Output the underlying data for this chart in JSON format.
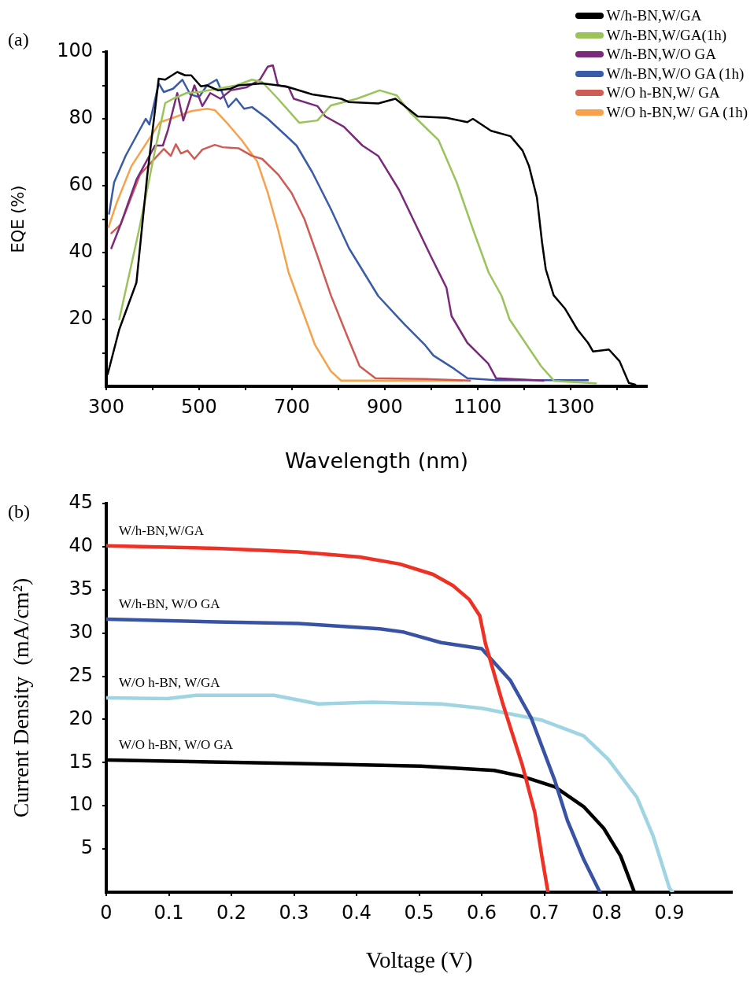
{
  "chart_data": [
    {
      "type": "line",
      "annotations": [
        "(a)"
      ],
      "xlabel": "Wavelength (nm)",
      "ylabel": "EQE (%)",
      "xlim": [
        300,
        1465
      ],
      "ylim": [
        0,
        100
      ],
      "xticks": [
        300,
        {
          "value": 400,
          "label": null
        },
        500,
        {
          "value": 600,
          "label": null
        },
        700,
        {
          "value": 800,
          "label": null
        },
        900,
        {
          "value": 1000,
          "label": null
        },
        1100,
        {
          "value": 1200,
          "label": null
        },
        1300,
        {
          "value": 1400,
          "label": null
        }
      ],
      "yticks": [
        {
          "value": 10,
          "label": null
        },
        20,
        {
          "value": 30,
          "label": null
        },
        40,
        {
          "value": 50,
          "label": null
        },
        60,
        {
          "value": 70,
          "label": null
        },
        80,
        {
          "value": 90,
          "label": null
        },
        100
      ],
      "grid": false,
      "legend": "top right",
      "marker": "none",
      "line_style": "solid",
      "series": [
        {
          "name": "W/h-BN,W/GA",
          "color": "#000000",
          "x": [
            303,
            328,
            365,
            388,
            413,
            427,
            453,
            470,
            483,
            504,
            517,
            541,
            568,
            585,
            636,
            687,
            744,
            806,
            823,
            886,
            923,
            971,
            1033,
            1078,
            1090,
            1129,
            1171,
            1197,
            1211,
            1228,
            1239,
            1247,
            1264,
            1288,
            1315,
            1338,
            1349,
            1383,
            1406,
            1426,
            1440
          ],
          "values": [
            3.6,
            17,
            31,
            62.6,
            92,
            91.7,
            94,
            93,
            93,
            89.7,
            90,
            88.5,
            89,
            90,
            90.6,
            89.7,
            87.3,
            86,
            85,
            84.6,
            86,
            80.7,
            80.3,
            79,
            80,
            76.4,
            74.8,
            70.5,
            65.8,
            56.4,
            43,
            35,
            27.2,
            23.3,
            17,
            13,
            10.4,
            11,
            7.5,
            1,
            0.5
          ]
        },
        {
          "name": "W/h-BN,W/GA(1h)",
          "color": "#9bc35a",
          "x": [
            328,
            371,
            405,
            427,
            444,
            473,
            500,
            541,
            580,
            614,
            636,
            670,
            716,
            755,
            784,
            840,
            889,
            926,
            954,
            976,
            1016,
            1055,
            1090,
            1124,
            1152,
            1169,
            1203,
            1237,
            1265,
            1355
          ],
          "values": [
            20,
            47,
            70.5,
            84.7,
            86,
            87.7,
            88,
            89,
            90,
            91.7,
            91,
            86,
            78.8,
            79.5,
            84,
            86,
            88.5,
            87,
            82,
            79,
            73.6,
            61,
            47,
            34,
            27,
            20,
            13,
            6,
            1.6,
            0.9
          ]
        },
        {
          "name": "W/h-BN,W/O GA",
          "color": "#7b2a7b",
          "x": [
            311,
            331,
            365,
            405,
            422,
            433,
            453,
            466,
            490,
            507,
            524,
            546,
            568,
            602,
            631,
            648,
            659,
            670,
            693,
            704,
            755,
            772,
            812,
            852,
            886,
            931,
            999,
            1033,
            1044,
            1078,
            1123,
            1140,
            1242
          ],
          "values": [
            41.3,
            48.4,
            61.8,
            72,
            72,
            76.7,
            87.7,
            79.5,
            90,
            83.8,
            87.7,
            86,
            88.5,
            89.4,
            91.7,
            95.6,
            96,
            90,
            89.4,
            86,
            83.8,
            80.7,
            77.6,
            72,
            68.9,
            58.7,
            39,
            29.5,
            21,
            13,
            6.8,
            2.4,
            1.7
          ]
        },
        {
          "name": "W/h-BN,W/O GA (1h)",
          "color": "#3a5ba8",
          "x": [
            306,
            317,
            342,
            385,
            393,
            413,
            424,
            444,
            464,
            481,
            500,
            517,
            538,
            563,
            580,
            597,
            614,
            648,
            687,
            710,
            744,
            784,
            823,
            886,
            942,
            987,
            1005,
            1050,
            1078,
            1140,
            1338
          ],
          "values": [
            51.6,
            61,
            69,
            80,
            78.3,
            90.6,
            88,
            89,
            91.7,
            87.3,
            86.5,
            90,
            91.7,
            83.5,
            86,
            83,
            83.5,
            80,
            75,
            72,
            64,
            53,
            41.3,
            27,
            18.6,
            12.3,
            9.2,
            5.2,
            2.4,
            1.8,
            1.8
          ]
        },
        {
          "name": "W/O h-BN,W/ GA",
          "color": "#cd5c55",
          "x": [
            311,
            331,
            373,
            424,
            439,
            450,
            461,
            475,
            490,
            507,
            534,
            551,
            585,
            614,
            636,
            670,
            699,
            727,
            755,
            784,
            818,
            846,
            880,
            987,
            1084
          ],
          "values": [
            45.8,
            48.4,
            63.4,
            71,
            68.9,
            72.4,
            69.6,
            70.5,
            68,
            70.8,
            72.2,
            71.5,
            71.2,
            68.9,
            68,
            63.4,
            57.9,
            50,
            39,
            27.2,
            15.4,
            6,
            2.4,
            2.2,
            1.7
          ]
        },
        {
          "name": "W/O h-BN,W/ GA (1h)",
          "color": "#f7a24b",
          "x": [
            305,
            322,
            354,
            376,
            416,
            444,
            483,
            517,
            534,
            563,
            592,
            625,
            648,
            670,
            693,
            721,
            750,
            784,
            806,
            840,
            1067
          ],
          "values": [
            47.6,
            54.7,
            65.8,
            70.5,
            79,
            80.3,
            82.3,
            83,
            82.6,
            78.3,
            73.6,
            67.3,
            57.9,
            47,
            34,
            23.3,
            12.3,
            4.5,
            1.7,
            1.7,
            1.7
          ]
        }
      ]
    },
    {
      "type": "line",
      "annotations": [
        "(b)"
      ],
      "xlabel": "Voltage (V)",
      "ylabel": "Current Density  (mA/cm²)",
      "xlim": [
        0,
        1
      ],
      "ylim": [
        0,
        45
      ],
      "xticks": [
        0,
        0.1,
        0.2,
        0.3,
        0.4,
        0.5,
        0.6,
        0.7,
        0.8,
        0.9
      ],
      "yticks": [
        5,
        10,
        15,
        20,
        25,
        30,
        35,
        40,
        45
      ],
      "grid": false,
      "legend": false,
      "marker": "none",
      "line_style": "solid",
      "series": [
        {
          "name": "W/h-BN,W/GA",
          "color": "#ee3124",
          "x": [
            0,
            0.177,
            0.307,
            0.405,
            0.469,
            0.522,
            0.554,
            0.58,
            0.597,
            0.606,
            0.633,
            0.665,
            0.685,
            0.697,
            0.706
          ],
          "values": [
            40.1,
            39.8,
            39.4,
            38.8,
            38,
            36.8,
            35.5,
            33.9,
            32,
            28.8,
            22,
            14.7,
            9.2,
            3.8,
            0
          ]
        },
        {
          "name": "W/h-BN, W/O GA",
          "color": "#3953a4",
          "x": [
            0,
            0.177,
            0.307,
            0.437,
            0.476,
            0.535,
            0.6,
            0.646,
            0.679,
            0.717,
            0.737,
            0.763,
            0.789
          ],
          "values": [
            31.6,
            31.3,
            31.1,
            30.5,
            30.1,
            28.9,
            28.2,
            24.5,
            20.2,
            12.9,
            8.3,
            3.8,
            0
          ]
        },
        {
          "name": "W/O h-BN, W/GA",
          "color": "#9fd5e3",
          "x": [
            0,
            0.098,
            0.144,
            0.268,
            0.339,
            0.424,
            0.535,
            0.6,
            0.697,
            0.763,
            0.802,
            0.848,
            0.874,
            0.9,
            0.905
          ],
          "values": [
            22.5,
            22.4,
            22.8,
            22.8,
            21.8,
            22,
            21.8,
            21.3,
            19.9,
            18.1,
            15.4,
            11,
            6.5,
            0.5,
            0
          ]
        },
        {
          "name": "W/O h-BN, W/O GA",
          "color": "#000000",
          "x": [
            0,
            0.307,
            0.502,
            0.62,
            0.665,
            0.717,
            0.763,
            0.795,
            0.822,
            0.844
          ],
          "values": [
            15.3,
            14.9,
            14.6,
            14.1,
            13.4,
            12.2,
            9.9,
            7.4,
            4.2,
            0
          ]
        }
      ]
    }
  ]
}
